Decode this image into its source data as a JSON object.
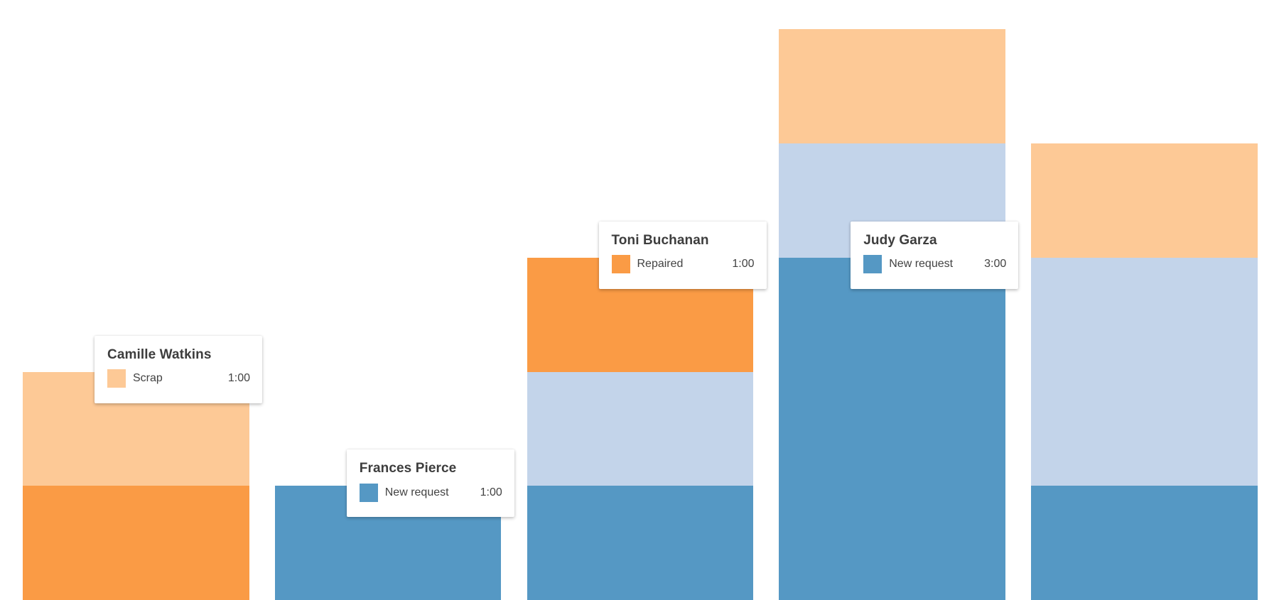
{
  "chart_data": {
    "type": "bar",
    "stacked": true,
    "orientation": "vertical",
    "unit": "hours",
    "value_format": "h:00",
    "axes_visible": false,
    "grid": false,
    "legend_position": "none",
    "note": "Bars are bottom-anchored and cropped by the bottom edge of the viewport; no axis labels are visible.",
    "statuses": {
      "scrap": {
        "label": "Scrap",
        "color": "#fdc996"
      },
      "repaired": {
        "label": "Repaired",
        "color": "#fa9b45"
      },
      "in_progress": {
        "label": "",
        "color": "#c3d4ea"
      },
      "new_request": {
        "label": "New request",
        "color": "#5598c4"
      }
    },
    "bars": [
      {
        "name": "Camille Watkins",
        "segments": [
          {
            "status": "scrap",
            "hours": 1
          },
          {
            "status": "repaired",
            "hours": 1
          }
        ]
      },
      {
        "name": "Frances Pierce",
        "segments": [
          {
            "status": "new_request",
            "hours": 1
          }
        ]
      },
      {
        "name": "Toni Buchanan",
        "segments": [
          {
            "status": "repaired",
            "hours": 1
          },
          {
            "status": "in_progress",
            "hours": 1
          },
          {
            "status": "new_request",
            "hours": 1
          }
        ]
      },
      {
        "name": "Judy Garza",
        "segments": [
          {
            "status": "scrap",
            "hours": 1
          },
          {
            "status": "in_progress",
            "hours": 1
          },
          {
            "status": "new_request",
            "hours": 3
          }
        ]
      },
      {
        "name": "",
        "segments": [
          {
            "status": "scrap",
            "hours": 1
          },
          {
            "status": "in_progress",
            "hours": 2
          },
          {
            "status": "new_request",
            "hours": 1
          }
        ]
      }
    ],
    "tooltips": [
      {
        "title": "Camille Watkins",
        "status": "scrap",
        "label": "Scrap",
        "value": "1:00",
        "bar_index": 0,
        "segment_index": 0
      },
      {
        "title": "Frances Pierce",
        "status": "new_request",
        "label": "New request",
        "value": "1:00",
        "bar_index": 1,
        "segment_index": 0
      },
      {
        "title": "Toni Buchanan",
        "status": "repaired",
        "label": "Repaired",
        "value": "1:00",
        "bar_index": 2,
        "segment_index": 0
      },
      {
        "title": "Judy Garza",
        "status": "new_request",
        "label": "New request",
        "value": "3:00",
        "bar_index": 3,
        "segment_index": 2
      }
    ]
  },
  "colors": {
    "background": "#ffffff",
    "tooltip_background": "#ffffff",
    "tooltip_title_text": "#3d3d3d",
    "tooltip_label_text": "#424242"
  }
}
